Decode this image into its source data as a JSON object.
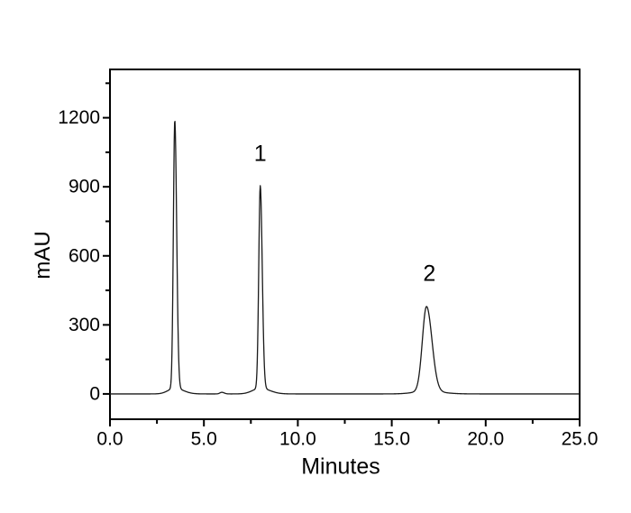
{
  "chart_data": {
    "type": "line",
    "title": "",
    "xlabel": "Minutes",
    "ylabel": "mAU",
    "xlim": [
      0.0,
      25.0
    ],
    "ylim": [
      -110,
      1410
    ],
    "grid": false,
    "legend": null,
    "frame_color": "#000000",
    "line_color": "#1a1a1a",
    "background_color": "#ffffff",
    "baseline_mau": 0,
    "x_major_ticks": [
      0.0,
      5.0,
      10.0,
      15.0,
      20.0,
      25.0
    ],
    "x_tick_labels": [
      "0.0",
      "5.0",
      "10.0",
      "15.0",
      "20.0",
      "25.0"
    ],
    "x_minor_ticks": [
      2.5,
      7.5,
      12.5,
      17.5,
      22.5
    ],
    "y_major_ticks": [
      0,
      300,
      600,
      900,
      1200
    ],
    "y_tick_labels": [
      "0",
      "300",
      "600",
      "900",
      "1200"
    ],
    "y_minor_ticks": [
      150,
      450,
      750,
      1050,
      1350
    ],
    "peaks": [
      {
        "label": "",
        "rt_min": 3.45,
        "apex_mau": 1190,
        "shape": {
          "main_h": 1165,
          "sl": 0.075,
          "sr": 0.1,
          "tail_h": 25,
          "tsl": 0.35,
          "tsr": 0.45
        }
      },
      {
        "label": "",
        "rt_min": 5.95,
        "apex_mau": 7,
        "shape": {
          "main_h": 7,
          "sl": 0.1,
          "sr": 0.13,
          "tail_h": 0,
          "tsl": 1,
          "tsr": 1
        }
      },
      {
        "label": "1",
        "rt_min": 8.0,
        "apex_mau": 905,
        "shape": {
          "main_h": 880,
          "sl": 0.08,
          "sr": 0.105,
          "tail_h": 25,
          "tsl": 0.4,
          "tsr": 0.5
        }
      },
      {
        "label": "2",
        "rt_min": 16.85,
        "apex_mau": 380,
        "shape": {
          "main_h": 368,
          "sl": 0.22,
          "sr": 0.29,
          "tail_h": 12,
          "tsl": 0.65,
          "tsr": 0.8
        }
      }
    ],
    "annotations": [
      {
        "text": "1",
        "x_min": 8.0,
        "y_mau": 1040
      },
      {
        "text": "2",
        "x_min": 17.0,
        "y_mau": 520
      }
    ]
  }
}
